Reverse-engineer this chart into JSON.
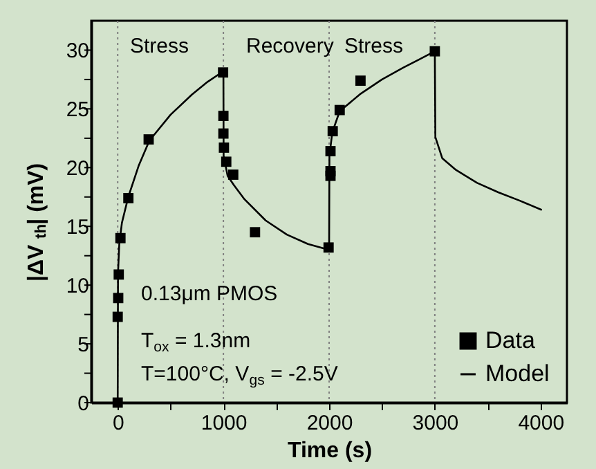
{
  "chart_data": {
    "type": "scatter",
    "xlabel": "Time (s)",
    "ylabel": "|ΔV$_{th}$| (mV)",
    "xlim": [
      -250,
      4250
    ],
    "ylim": [
      0,
      32.5
    ],
    "xticks": [
      0,
      {
        "value": 500,
        "label": null
      },
      1000,
      {
        "value": 1500,
        "label": null
      },
      2000,
      {
        "value": 2500,
        "label": null
      },
      3000,
      {
        "value": 3500,
        "label": null
      },
      4000
    ],
    "yticks": [
      0,
      {
        "value": 2.5,
        "label": null
      },
      5,
      {
        "value": 7.5,
        "label": null
      },
      10,
      {
        "value": 12.5,
        "label": null
      },
      15,
      {
        "value": 17.5,
        "label": null
      },
      20,
      {
        "value": 22.5,
        "label": null
      },
      25,
      {
        "value": 27.5,
        "label": null
      },
      30
    ],
    "series": [
      {
        "name": "Data",
        "type": "scatter",
        "marker": "square",
        "color": "#000000",
        "x": [
          0,
          0,
          5,
          10,
          26,
          101,
          293,
          997,
          1000,
          1000,
          1005,
          1027,
          1093,
          1299,
          1995,
          2013,
          2013,
          2013,
          2034,
          2100,
          2297,
          3000
        ],
        "values": [
          0,
          7.3,
          8.9,
          10.9,
          14.0,
          17.4,
          22.4,
          28.1,
          24.4,
          22.9,
          21.7,
          20.5,
          19.4,
          14.5,
          13.2,
          19.3,
          19.7,
          21.4,
          23.1,
          24.9,
          27.4,
          29.9
        ]
      },
      {
        "name": "Model",
        "type": "line",
        "marker": "none",
        "line_style": "solid",
        "color": "#000000",
        "x": [
          0,
          3,
          15,
          40,
          100,
          200,
          300,
          500,
          700,
          850,
          1000,
          1002,
          1040,
          1100,
          1200,
          1400,
          1600,
          1800,
          2000,
          2003,
          2030,
          2100,
          2300,
          2500,
          2700,
          2850,
          3000,
          3005,
          3070,
          3200,
          3400,
          3600,
          3800,
          4012
        ],
        "values": [
          0,
          11,
          13.5,
          15.3,
          17.5,
          20.2,
          22.3,
          24.5,
          26.2,
          27.3,
          28.2,
          21,
          19.3,
          18.5,
          17.3,
          15.5,
          14.3,
          13.5,
          13.0,
          21,
          23,
          24.8,
          26.3,
          27.5,
          28.5,
          29.2,
          29.9,
          22.6,
          20.8,
          19.8,
          18.7,
          17.9,
          17.2,
          16.4
        ]
      }
    ],
    "ref_lines": [
      {
        "axis": "x",
        "value": 0,
        "label": null,
        "color": "#808080",
        "line_style": "dotted"
      },
      {
        "axis": "x",
        "value": 1000,
        "label": null,
        "color": "#808080",
        "line_style": "dotted"
      },
      {
        "axis": "x",
        "value": 2000,
        "label": null,
        "color": "#808080",
        "line_style": "dotted"
      },
      {
        "axis": "x",
        "value": 3000,
        "label": null,
        "color": "#808080",
        "line_style": "dotted"
      }
    ],
    "annotations": [
      "Stress",
      "Recovery",
      "Stress",
      "0.13μm PMOS",
      "T$_{ox}$ = 1.3nm",
      "T=100°C, V$_{gs}$ = -2.5V"
    ],
    "legend": "bottom right",
    "grid": false
  }
}
